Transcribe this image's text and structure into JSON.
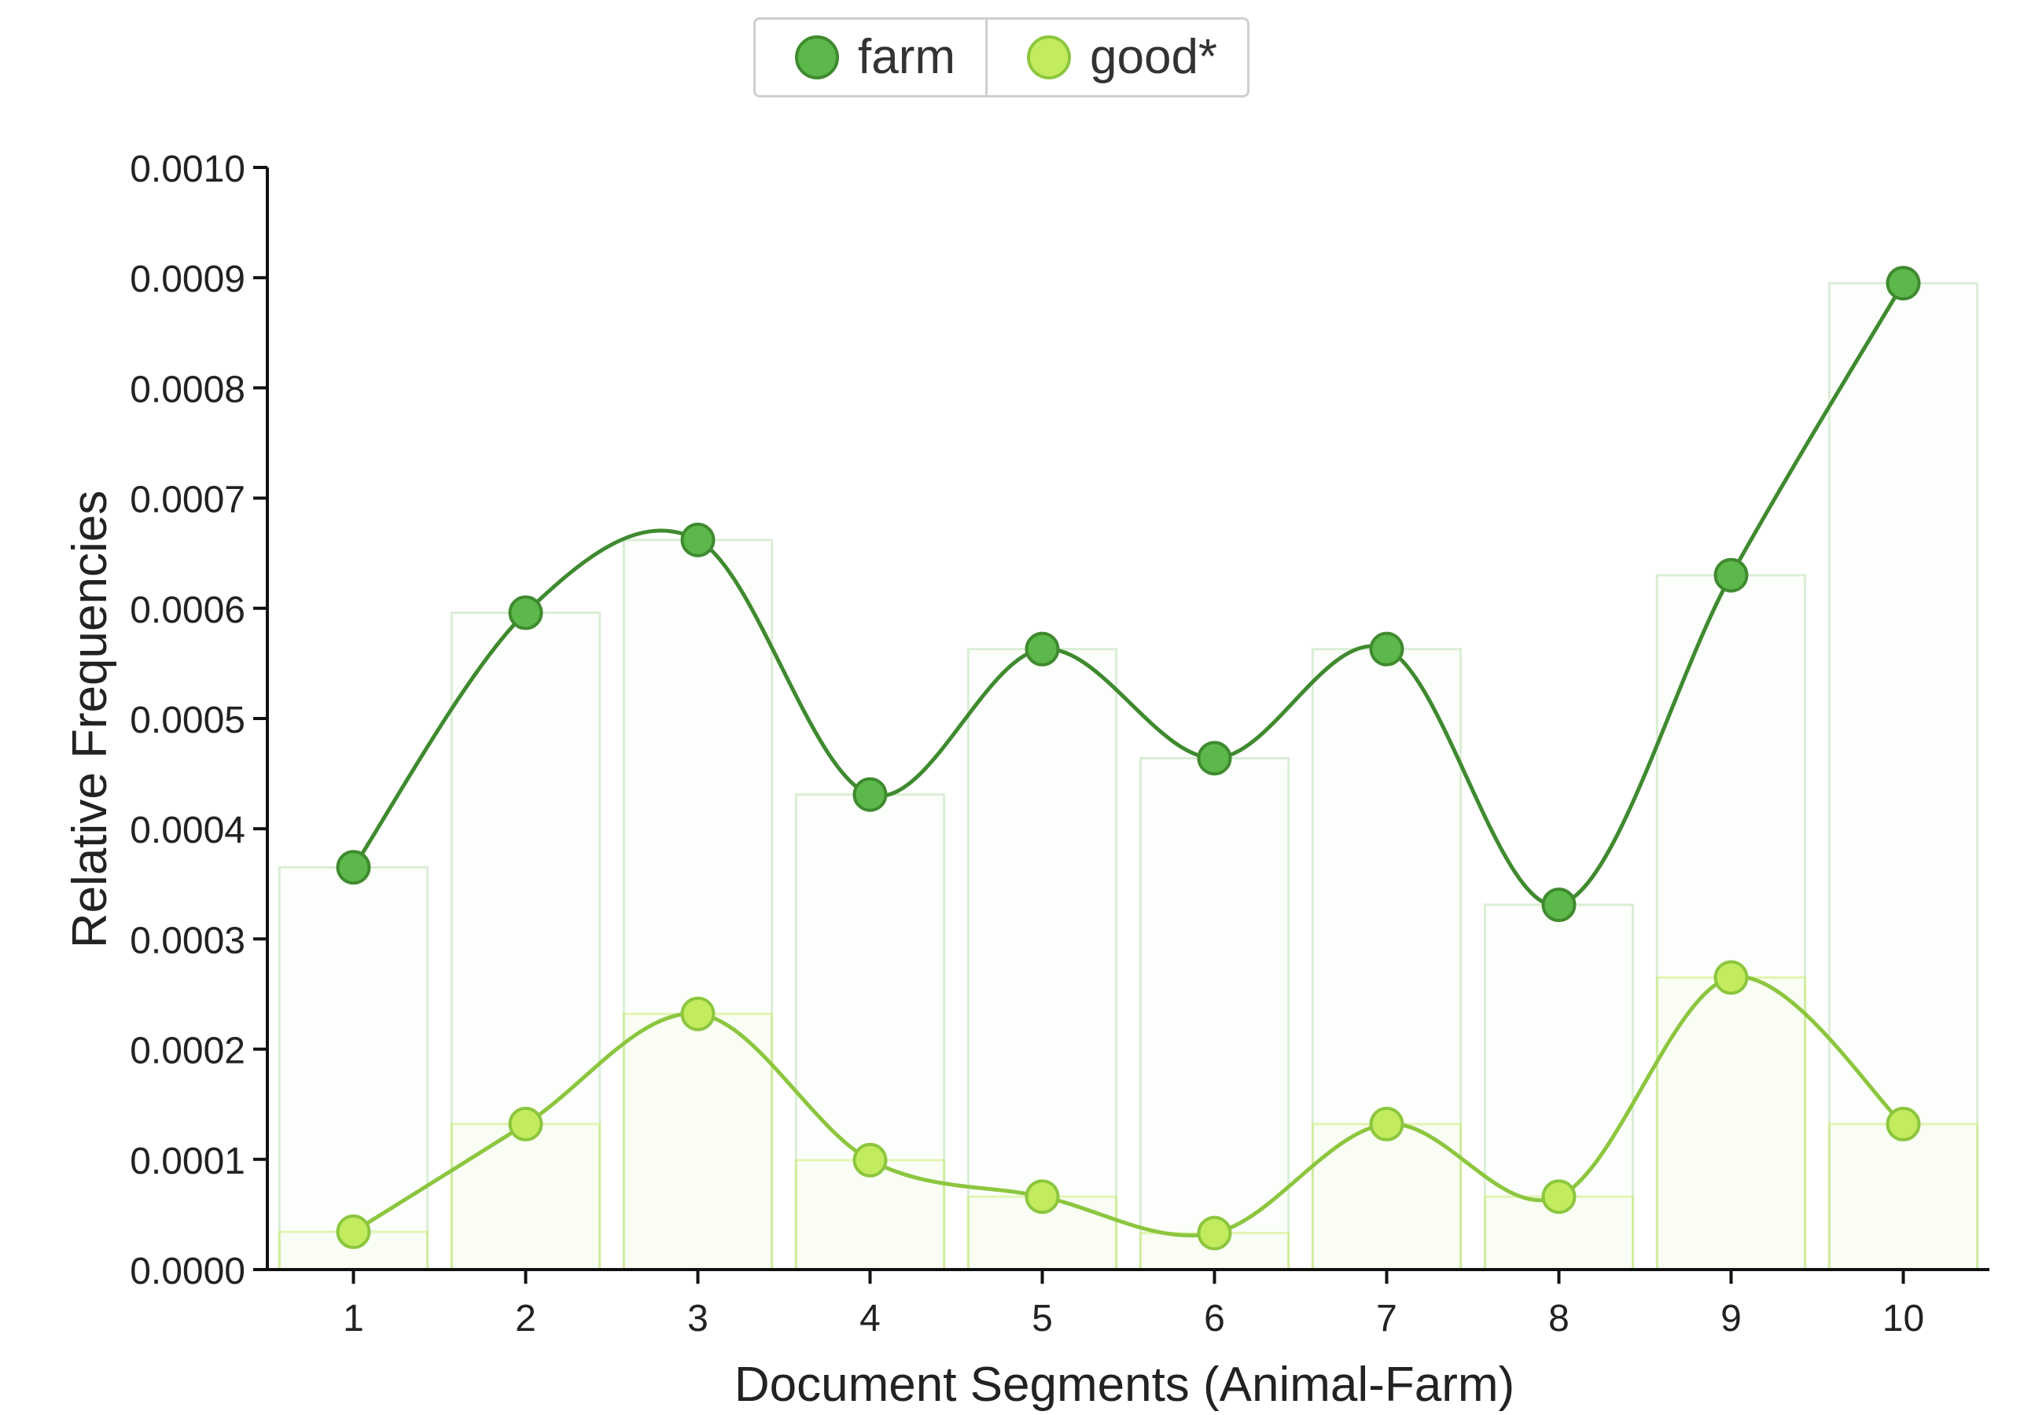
{
  "chart_data": {
    "type": "line",
    "categories": [
      "1",
      "2",
      "3",
      "4",
      "5",
      "6",
      "7",
      "8",
      "9",
      "10"
    ],
    "series": [
      {
        "name": "farm",
        "color": "#5cb84a",
        "line_color": "#3f8a2f",
        "values": [
          0.000365,
          0.000596,
          0.000662,
          0.000431,
          0.000563,
          0.000464,
          0.000563,
          0.000331,
          0.00063,
          0.000895
        ]
      },
      {
        "name": "good*",
        "color": "#c3eb5e",
        "line_color": "#8cc63f",
        "values": [
          3.43e-05,
          0.000132,
          0.000232,
          9.93e-05,
          6.62e-05,
          3.31e-05,
          0.000132,
          6.62e-05,
          0.000265,
          0.000132
        ]
      }
    ],
    "xlabel": "Document Segments (Animal-Farm)",
    "ylabel": "Relative Frequencies",
    "ylim": [
      0,
      0.001
    ],
    "yticks": [
      "0.0000",
      "0.0001",
      "0.0002",
      "0.0003",
      "0.0004",
      "0.0005",
      "0.0006",
      "0.0007",
      "0.0008",
      "0.0009",
      "0.0010"
    ],
    "legend_position": "top-center",
    "grid": false
  }
}
